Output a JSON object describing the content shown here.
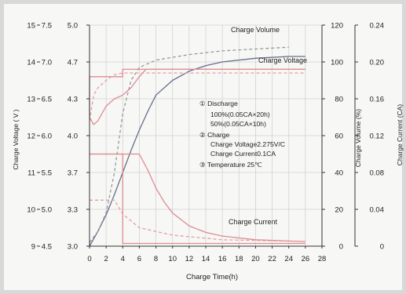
{
  "chart_data": {
    "type": "line",
    "xlabel": "Charge Time(h)",
    "x_ticks": [
      0,
      2,
      4,
      6,
      8,
      10,
      12,
      14,
      16,
      18,
      20,
      22,
      24,
      26,
      28
    ],
    "xlim": [
      0,
      28
    ],
    "axes": {
      "voltage": {
        "label": "Charge Voltage ( V )",
        "ticks": [
          "15",
          "14",
          "13",
          "12",
          "11",
          "10",
          "9"
        ],
        "ylim": [
          9,
          15
        ]
      },
      "voltage_cell": {
        "ticks": [
          "7.5",
          "7.0",
          "6.5",
          "6.0",
          "5.5",
          "5.0",
          "4.5"
        ]
      },
      "voltage_low": {
        "ticks": [
          "5.0",
          "4.7",
          "4.3",
          "4.0",
          "3.7",
          "3.3",
          "3.0"
        ]
      },
      "volume": {
        "label": "Charge Volume (%)",
        "ticks": [
          "120",
          "100",
          "80",
          "60",
          "40",
          "20",
          "0"
        ],
        "ylim": [
          0,
          120
        ]
      },
      "current": {
        "label": "Charge Current (CA)",
        "ticks": [
          "0.24",
          "0.20",
          "0.16",
          "0.12",
          "0.08",
          "0.04",
          "0"
        ],
        "ylim": [
          0,
          0.24
        ]
      }
    },
    "series": [
      {
        "name": "Charge Volume",
        "kind": "volume",
        "style": "solid",
        "color": "#666e8a",
        "points": [
          [
            0,
            0
          ],
          [
            1,
            8
          ],
          [
            2,
            17
          ],
          [
            3,
            28
          ],
          [
            4,
            40
          ],
          [
            5,
            52
          ],
          [
            6,
            63
          ],
          [
            7,
            73
          ],
          [
            8,
            82
          ],
          [
            10,
            90
          ],
          [
            12,
            95
          ],
          [
            14,
            98
          ],
          [
            16,
            100
          ],
          [
            20,
            102
          ],
          [
            24,
            103
          ],
          [
            26,
            103
          ]
        ]
      },
      {
        "kind": "volume",
        "style": "dashed",
        "color": "#999999",
        "points": [
          [
            0,
            2
          ],
          [
            1,
            8
          ],
          [
            2,
            18
          ],
          [
            3,
            40
          ],
          [
            4,
            72
          ],
          [
            5,
            90
          ],
          [
            6,
            97
          ],
          [
            8,
            101
          ],
          [
            12,
            104
          ],
          [
            16,
            106
          ],
          [
            20,
            107
          ],
          [
            24,
            108
          ]
        ]
      },
      {
        "name": "Charge Voltage",
        "kind": "voltage",
        "style": "solid",
        "color": "#dd8d91",
        "points": [
          [
            0,
            12.5
          ],
          [
            0.5,
            12.3
          ],
          [
            1,
            12.4
          ],
          [
            2,
            12.8
          ],
          [
            3,
            13.0
          ],
          [
            4,
            13.1
          ],
          [
            5,
            13.3
          ],
          [
            6,
            13.6
          ],
          [
            6.8,
            13.8
          ],
          [
            26,
            13.8
          ]
        ]
      },
      {
        "kind": "voltage",
        "style": "solid",
        "color": "#dd8d91",
        "points": [
          [
            0,
            12.5
          ],
          [
            0,
            13.6
          ],
          [
            4,
            13.6
          ],
          [
            4,
            13.8
          ],
          [
            26,
            13.8
          ]
        ]
      },
      {
        "kind": "voltage",
        "style": "dashed",
        "color": "#e0a0a4",
        "points": [
          [
            0,
            12.4
          ],
          [
            0.5,
            13.1
          ],
          [
            1,
            13.3
          ],
          [
            2,
            13.5
          ],
          [
            3,
            13.65
          ],
          [
            4,
            13.7
          ],
          [
            26,
            13.7
          ]
        ]
      },
      {
        "name": "Charge Current",
        "kind": "current",
        "style": "solid",
        "color": "#dd8d91",
        "points": [
          [
            0,
            0.1
          ],
          [
            6,
            0.1
          ],
          [
            7,
            0.083
          ],
          [
            8,
            0.063
          ],
          [
            9,
            0.048
          ],
          [
            10,
            0.036
          ],
          [
            12,
            0.022
          ],
          [
            14,
            0.015
          ],
          [
            16,
            0.011
          ],
          [
            20,
            0.007
          ],
          [
            26,
            0.005
          ]
        ]
      },
      {
        "kind": "current",
        "style": "solid",
        "color": "#dd8d91",
        "points": [
          [
            0,
            0.1
          ],
          [
            4,
            0.1
          ],
          [
            4,
            0.003
          ],
          [
            26,
            0.003
          ]
        ]
      },
      {
        "kind": "current",
        "style": "dashed",
        "color": "#e0a0a4",
        "points": [
          [
            0,
            0.05
          ],
          [
            3,
            0.05
          ],
          [
            4,
            0.035
          ],
          [
            6,
            0.02
          ],
          [
            10,
            0.012
          ],
          [
            16,
            0.007
          ],
          [
            26,
            0.005
          ]
        ]
      }
    ],
    "annotations": [
      "① Discharge",
      "100%(0.05CA×20h)",
      "50%(0.05CA×10h)",
      "② Charge",
      "Charge Voltage2.275V/C",
      "Charge Current0.1CA",
      "③ Temperature 25℃"
    ],
    "grid": true,
    "legend": "none"
  }
}
